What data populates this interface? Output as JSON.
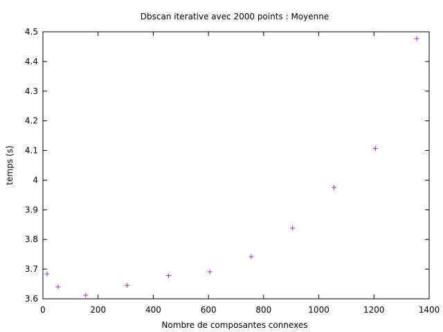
{
  "chart_data": {
    "type": "scatter",
    "title": "Dbscan iterative avec 2000 points : Moyenne",
    "xlabel": "Nombre de composantes connexes",
    "ylabel": "temps (s)",
    "xlim": [
      0,
      1400
    ],
    "ylim": [
      3.6,
      4.5
    ],
    "xticks": [
      0,
      200,
      400,
      600,
      800,
      1000,
      1200,
      1400
    ],
    "yticks": [
      3.6,
      3.7,
      3.8,
      3.9,
      4,
      4.1,
      4.2,
      4.3,
      4.4,
      4.5
    ],
    "xtick_labels": [
      "0",
      "200",
      "400",
      "600",
      "800",
      "1000",
      "1200",
      "1400"
    ],
    "ytick_labels": [
      "3.6",
      "3.7",
      "3.8",
      "3.9",
      "4",
      "4.1",
      "4.2",
      "4.3",
      "4.4",
      "4.5"
    ],
    "grid": false,
    "marker": "+",
    "color": "#a020f0",
    "series": [
      {
        "x": [
          15,
          55,
          155,
          305,
          455,
          605,
          755,
          905,
          1055,
          1205,
          1355
        ],
        "y": [
          3.684,
          3.64,
          3.612,
          3.645,
          3.678,
          3.691,
          3.742,
          3.838,
          3.975,
          4.107,
          4.477
        ]
      }
    ]
  }
}
